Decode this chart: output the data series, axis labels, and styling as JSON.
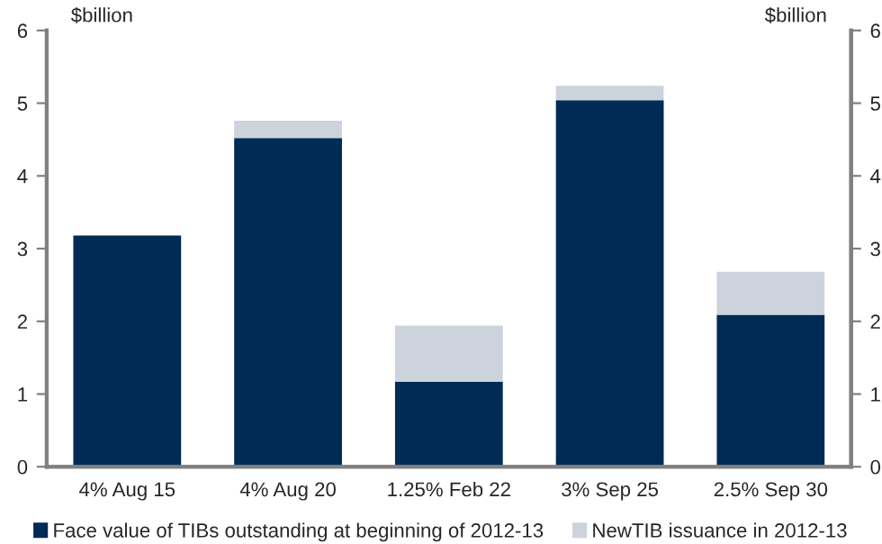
{
  "chart_data": {
    "type": "bar",
    "stacked": true,
    "categories": [
      "4% Aug 15",
      "4% Aug 20",
      "1.25% Feb 22",
      "3% Sep 25",
      "2.5% Sep 30"
    ],
    "series": [
      {
        "name": "Face value of TIBs outstanding at beginning of 2012-13",
        "color": "#002b55",
        "values": [
          3.18,
          4.52,
          1.17,
          5.04,
          2.09
        ]
      },
      {
        "name": "NewTIB issuance in 2012-13",
        "color": "#ccd3dd",
        "values": [
          0,
          0.24,
          0.77,
          0.2,
          0.59
        ]
      }
    ],
    "ylabel": "$billion",
    "y2label": "$billion",
    "ylim": [
      0,
      6
    ],
    "yticks": [
      0,
      1,
      2,
      3,
      4,
      5,
      6
    ],
    "y2lim": [
      0,
      6
    ],
    "y2ticks": [
      0,
      1,
      2,
      3,
      4,
      5,
      6
    ],
    "grid": false,
    "legend": "bottom"
  }
}
